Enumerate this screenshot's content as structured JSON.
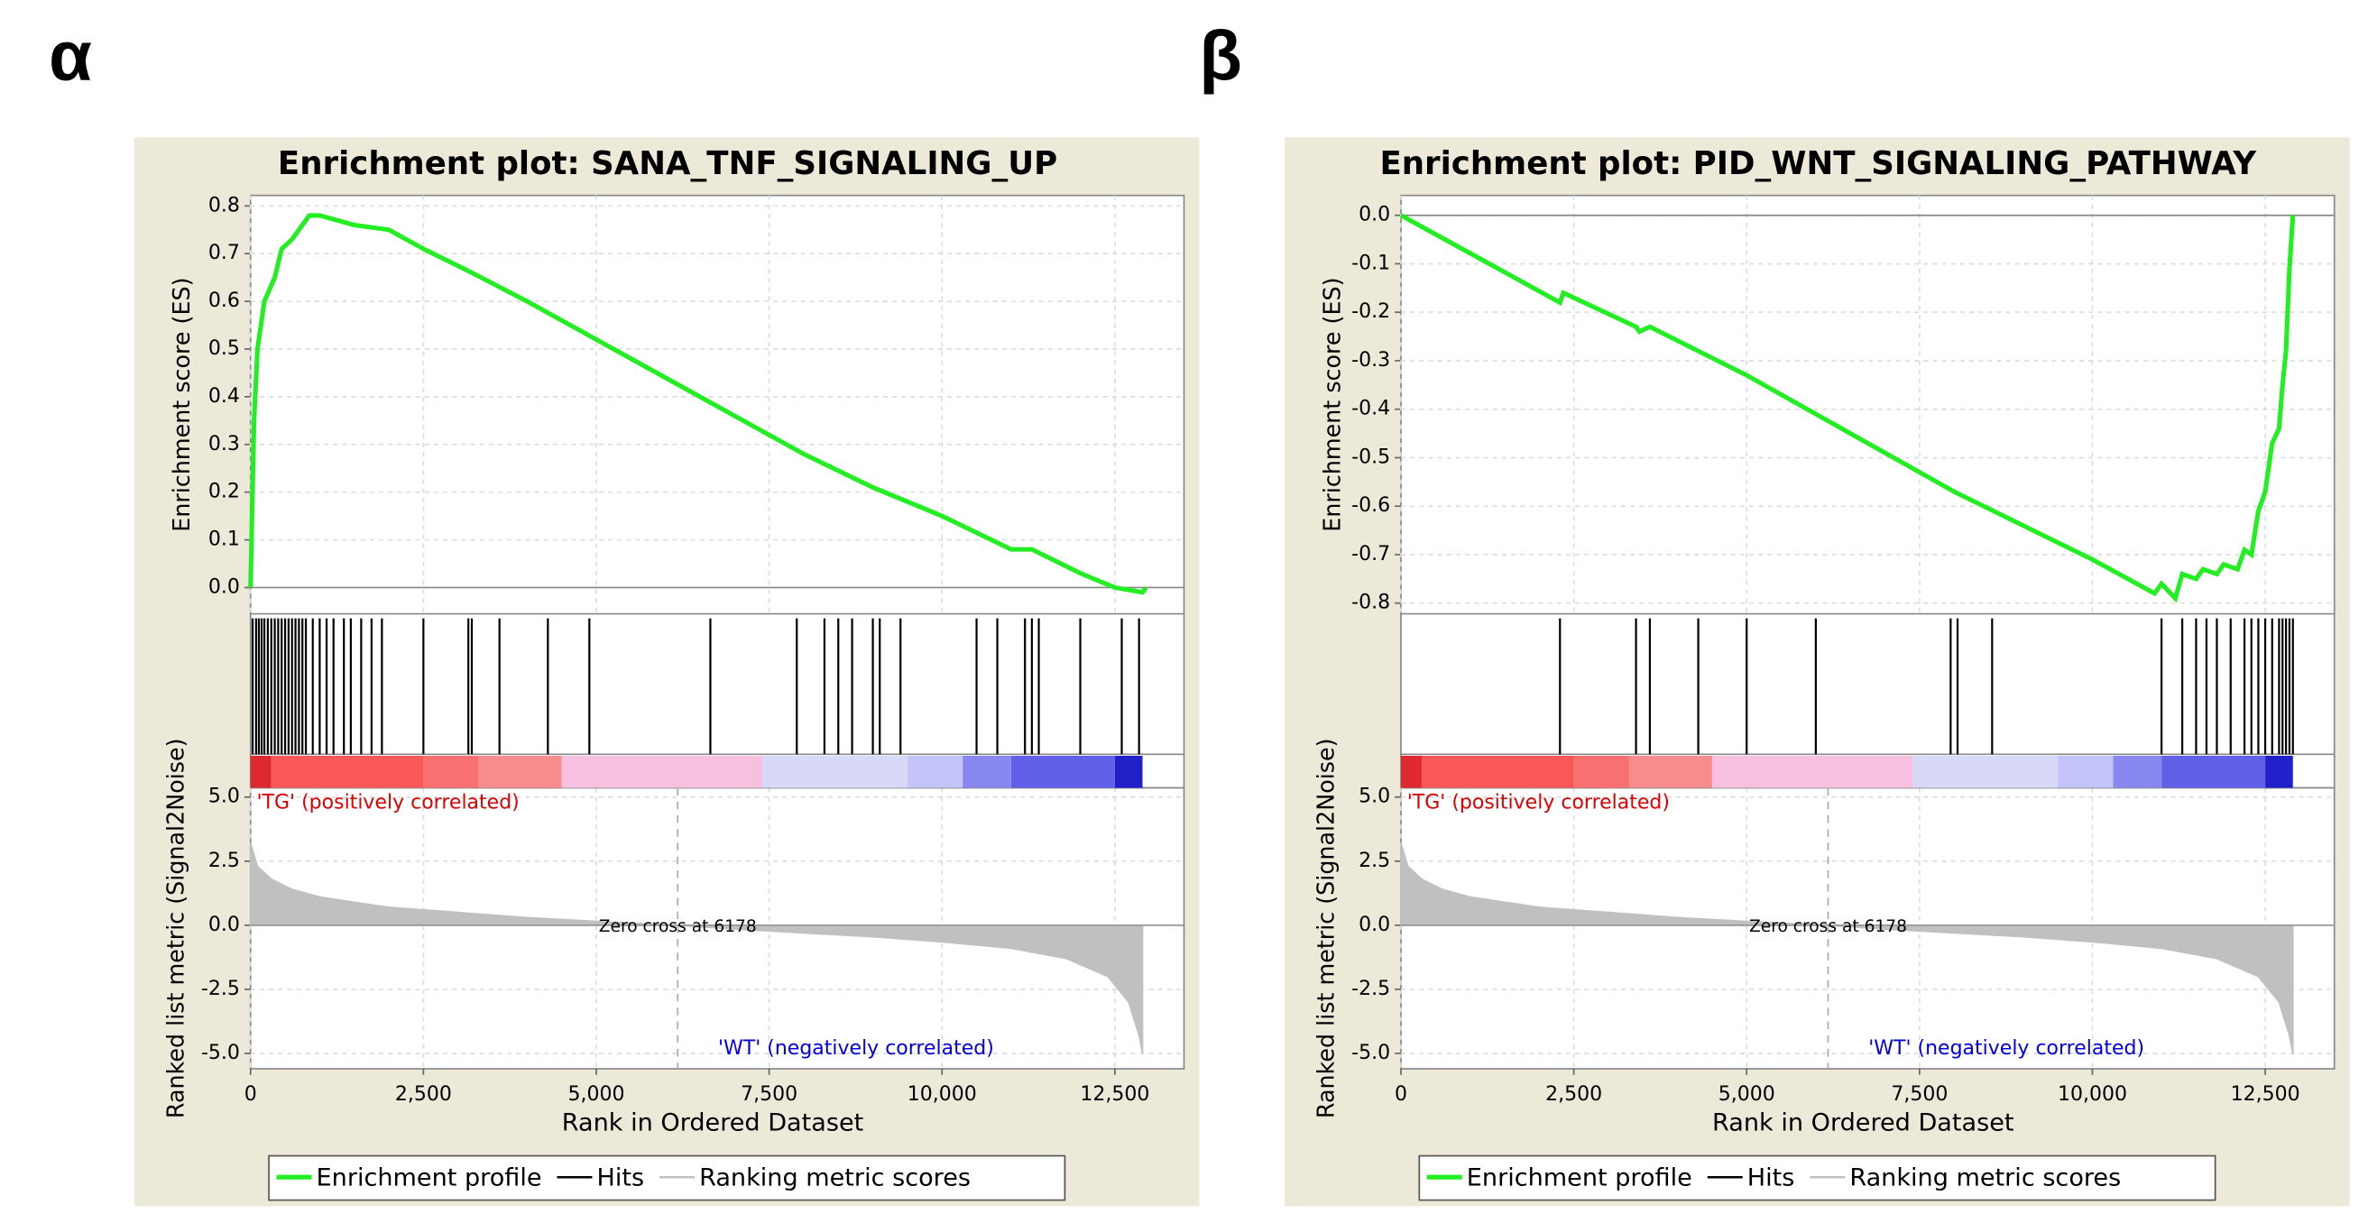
{
  "chart_data": [
    {
      "type": "line",
      "panel": "α",
      "title": "Enrichment plot: SANA_TNF_SIGNALING_UP",
      "xlabel": "Rank in Ordered Dataset",
      "ylabel": "Enrichment score (ES)",
      "y2label": "Ranked list metric (Signal2Noise)",
      "xlim": [
        0,
        13500
      ],
      "xticks": [
        0,
        {
          "value": 2500,
          "label": "2,500"
        },
        {
          "value": 5000,
          "label": "5,000"
        },
        {
          "value": 7500,
          "label": "7,500"
        },
        {
          "value": 10000,
          "label": "10,000"
        },
        {
          "value": 12500,
          "label": "12,500"
        }
      ],
      "ylim": [
        -0.055,
        0.822
      ],
      "yticks": [
        {
          "value": 0,
          "label": "0.0"
        },
        {
          "value": 0.1,
          "label": "0.1"
        },
        {
          "value": 0.2,
          "label": "0.2"
        },
        {
          "value": 0.3,
          "label": "0.3"
        },
        {
          "value": 0.4,
          "label": "0.4"
        },
        {
          "value": 0.5,
          "label": "0.5"
        },
        {
          "value": 0.6,
          "label": "0.6"
        },
        {
          "value": 0.7,
          "label": "0.7"
        },
        {
          "value": 0.8,
          "label": "0.8"
        }
      ],
      "y2lim": [
        -5.6,
        5.36
      ],
      "y2ticks": [
        {
          "value": 5,
          "label": "5.0"
        },
        {
          "value": 2.5,
          "label": "2.5"
        },
        {
          "value": 0,
          "label": "0.0"
        },
        {
          "value": -2.5,
          "label": "-2.5"
        },
        {
          "value": -5,
          "label": "-5.0"
        }
      ],
      "grid": true,
      "pos_label": "'TG' (positively correlated)",
      "neg_label": "'WT' (negatively correlated)",
      "zero_cross": {
        "value": 6178,
        "label": "Zero cross at 6178"
      },
      "series": [
        {
          "name": "Enrichment profile",
          "color": "#22ee22",
          "x": [
            0,
            50,
            100,
            200,
            350,
            450,
            600,
            750,
            850,
            1000,
            1500,
            2000,
            2500,
            3200,
            4000,
            5000,
            6000,
            7000,
            8000,
            9000,
            10000,
            11000,
            11300,
            12000,
            12500,
            12900,
            12950
          ],
          "values": [
            0,
            0.35,
            0.5,
            0.6,
            0.65,
            0.71,
            0.73,
            0.76,
            0.78,
            0.78,
            0.76,
            0.75,
            0.71,
            0.66,
            0.6,
            0.52,
            0.44,
            0.36,
            0.28,
            0.21,
            0.15,
            0.08,
            0.08,
            0.03,
            0,
            -0.01,
            0
          ]
        },
        {
          "name": "Hits",
          "color": "#000000",
          "x": [
            30,
            80,
            120,
            160,
            200,
            250,
            300,
            350,
            400,
            450,
            500,
            550,
            600,
            650,
            700,
            750,
            800,
            900,
            1000,
            1100,
            1200,
            1350,
            1450,
            1600,
            1750,
            1900,
            2500,
            3150,
            3200,
            3600,
            4300,
            4900,
            6650,
            7900,
            8300,
            8500,
            8700,
            9000,
            9100,
            9400,
            10500,
            10800,
            11200,
            11300,
            11400,
            12000,
            12600,
            12850
          ]
        },
        {
          "name": "Ranking metric scores",
          "color": "#c0c0c0",
          "axis": "y2",
          "x": [
            0,
            100,
            300,
            600,
            1000,
            2000,
            3000,
            4000,
            5000,
            6178,
            7000,
            8000,
            9000,
            10000,
            11000,
            11800,
            12400,
            12700,
            12850,
            12900
          ],
          "values": [
            3.2,
            2.3,
            1.8,
            1.4,
            1.1,
            0.7,
            0.5,
            0.3,
            0.15,
            0,
            -0.15,
            -0.3,
            -0.45,
            -0.65,
            -0.9,
            -1.3,
            -2.0,
            -3.0,
            -4.3,
            -5.0
          ]
        }
      ]
    },
    {
      "type": "line",
      "panel": "β",
      "title": "Enrichment plot: PID_WNT_SIGNALING_PATHWAY",
      "xlabel": "Rank in Ordered Dataset",
      "ylabel": "Enrichment score (ES)",
      "y2label": "Ranked list metric (Signal2Noise)",
      "xlim": [
        0,
        13500
      ],
      "xticks": [
        0,
        {
          "value": 2500,
          "label": "2,500"
        },
        {
          "value": 5000,
          "label": "5,000"
        },
        {
          "value": 7500,
          "label": "7,500"
        },
        {
          "value": 10000,
          "label": "10,000"
        },
        {
          "value": 12500,
          "label": "12,500"
        }
      ],
      "ylim": [
        -0.822,
        0.041
      ],
      "yticks": [
        {
          "value": 0,
          "label": "0.0"
        },
        {
          "value": -0.1,
          "label": "-0.1"
        },
        {
          "value": -0.2,
          "label": "-0.2"
        },
        {
          "value": -0.3,
          "label": "-0.3"
        },
        {
          "value": -0.4,
          "label": "-0.4"
        },
        {
          "value": -0.5,
          "label": "-0.5"
        },
        {
          "value": -0.6,
          "label": "-0.6"
        },
        {
          "value": -0.7,
          "label": "-0.7"
        },
        {
          "value": -0.8,
          "label": "-0.8"
        }
      ],
      "y2lim": [
        -5.6,
        5.36
      ],
      "y2ticks": [
        {
          "value": 5,
          "label": "5.0"
        },
        {
          "value": 2.5,
          "label": "2.5"
        },
        {
          "value": 0,
          "label": "0.0"
        },
        {
          "value": -2.5,
          "label": "-2.5"
        },
        {
          "value": -5,
          "label": "-5.0"
        }
      ],
      "grid": true,
      "pos_label": "'TG' (positively correlated)",
      "neg_label": "'WT' (negatively correlated)",
      "zero_cross": {
        "value": 6178,
        "label": "Zero cross at 6178"
      },
      "series": [
        {
          "name": "Enrichment profile",
          "color": "#22ee22",
          "x": [
            0,
            2300,
            2350,
            3400,
            3450,
            3600,
            4300,
            5000,
            6000,
            8000,
            9000,
            10000,
            10900,
            11000,
            11200,
            11300,
            11500,
            11600,
            11800,
            11900,
            12100,
            12200,
            12300,
            12400,
            12500,
            12600,
            12700,
            12750,
            12800,
            12850,
            12900
          ],
          "values": [
            0,
            -0.18,
            -0.16,
            -0.23,
            -0.24,
            -0.23,
            -0.28,
            -0.33,
            -0.41,
            -0.57,
            -0.64,
            -0.71,
            -0.78,
            -0.76,
            -0.79,
            -0.74,
            -0.75,
            -0.73,
            -0.74,
            -0.72,
            -0.73,
            -0.69,
            -0.7,
            -0.61,
            -0.57,
            -0.47,
            -0.44,
            -0.35,
            -0.28,
            -0.11,
            0
          ]
        },
        {
          "name": "Hits",
          "color": "#000000",
          "x": [
            2300,
            3400,
            3600,
            4300,
            5000,
            6000,
            7950,
            8050,
            8550,
            11000,
            11300,
            11500,
            11650,
            11800,
            12000,
            12200,
            12300,
            12400,
            12500,
            12600,
            12700,
            12750,
            12800,
            12850,
            12900
          ]
        },
        {
          "name": "Ranking metric scores",
          "color": "#c0c0c0",
          "axis": "y2",
          "x": [
            0,
            100,
            300,
            600,
            1000,
            2000,
            3000,
            4000,
            5000,
            6178,
            7000,
            8000,
            9000,
            10000,
            11000,
            11800,
            12400,
            12700,
            12850,
            12900
          ],
          "values": [
            3.2,
            2.3,
            1.8,
            1.4,
            1.1,
            0.7,
            0.5,
            0.3,
            0.15,
            0,
            -0.15,
            -0.3,
            -0.45,
            -0.65,
            -0.9,
            -1.3,
            -2.0,
            -3.0,
            -4.3,
            -5.0
          ]
        }
      ]
    }
  ]
}
